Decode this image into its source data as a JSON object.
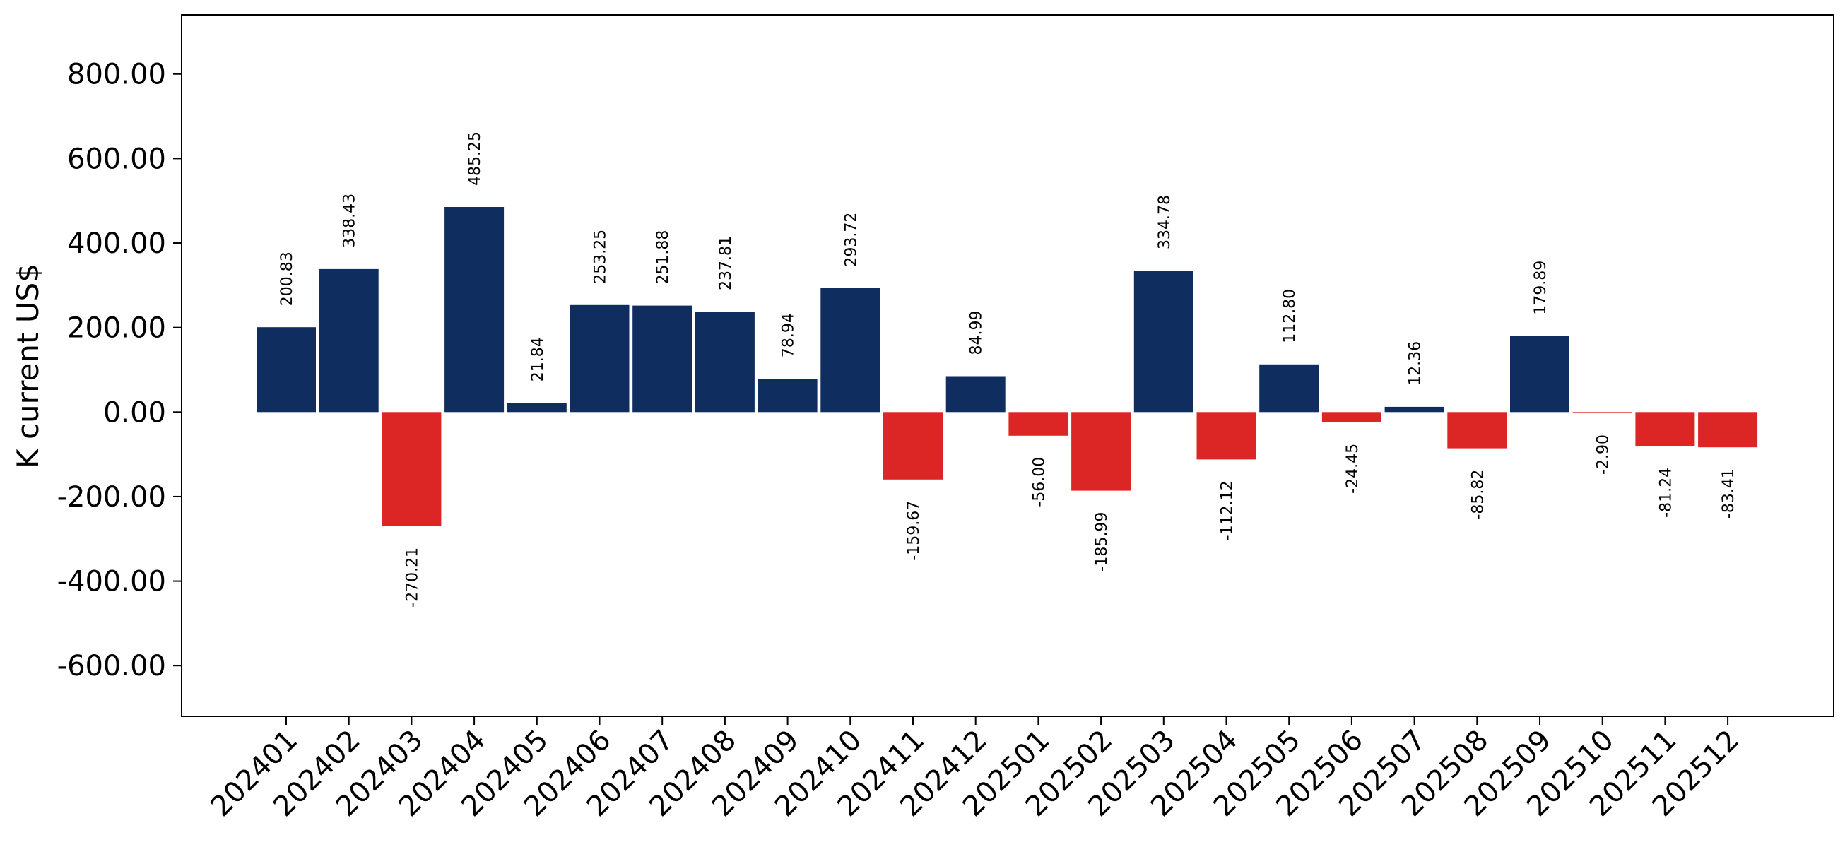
{
  "chart_data": {
    "type": "bar",
    "ylabel": "K current US$",
    "xlabel": "",
    "title": "",
    "ylim": [
      -720,
      940
    ],
    "yticks": [
      -600,
      -400,
      -200,
      0,
      200,
      400,
      600,
      800
    ],
    "ytick_labels": [
      "-600.00",
      "-400.00",
      "-200.00",
      "0.00",
      "200.00",
      "400.00",
      "600.00",
      "800.00"
    ],
    "grid": false,
    "positive_color": "#0f2d5e",
    "negative_color": "#dc2626",
    "categories": [
      "202401",
      "202402",
      "202403",
      "202404",
      "202405",
      "202406",
      "202407",
      "202408",
      "202409",
      "202410",
      "202411",
      "202412",
      "202501",
      "202502",
      "202503",
      "202504",
      "202505",
      "202506",
      "202507",
      "202508",
      "202509",
      "202510",
      "202511",
      "202512"
    ],
    "values": [
      200.83,
      338.43,
      -270.21,
      485.25,
      21.84,
      253.25,
      251.88,
      237.81,
      78.94,
      293.72,
      -159.67,
      84.99,
      -56.0,
      -185.99,
      334.78,
      -112.12,
      112.8,
      -24.45,
      12.36,
      -85.82,
      179.89,
      -2.9,
      -81.24,
      -83.41
    ],
    "value_labels": [
      "200.83",
      "338.43",
      "-270.21",
      "485.25",
      "21.84",
      "253.25",
      "251.88",
      "237.81",
      "78.94",
      "293.72",
      "-159.67",
      "84.99",
      "-56.00",
      "-185.99",
      "334.78",
      "-112.12",
      "112.80",
      "-24.45",
      "12.36",
      "-85.82",
      "179.89",
      "-2.90",
      "-81.24",
      "-83.41"
    ]
  }
}
